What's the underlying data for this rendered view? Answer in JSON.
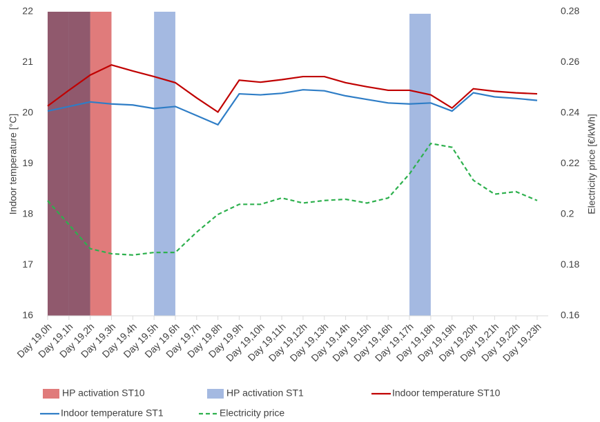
{
  "chart_data": {
    "type": "line",
    "ylabel": "Indoor temperature [°C]",
    "y2label": "Electricity price [€/kWh]",
    "categories": [
      "Day 19,0h",
      "Day 19,1h",
      "Day 19,2h",
      "Day 19,3h",
      "Day 19,4h",
      "Day 19,5h",
      "Day 19,6h",
      "Day 19,7h",
      "Day 19,8h",
      "Day 19,9h",
      "Day 19,10h",
      "Day 19,11h",
      "Day 19,12h",
      "Day 19,13h",
      "Day 19,14h",
      "Day 19,15h",
      "Day 19,16h",
      "Day 19,17h",
      "Day 19,18h",
      "Day 19,19h",
      "Day 19,20h",
      "Day 19,21h",
      "Day 19,22h",
      "Day 19,23h"
    ],
    "ylim": [
      16,
      22
    ],
    "yticks": [
      16,
      17,
      18,
      19,
      20,
      21,
      22
    ],
    "y2lim": [
      0.16,
      0.28
    ],
    "y2ticks": [
      0.16,
      0.18,
      0.2,
      0.22,
      0.24,
      0.26,
      0.28
    ],
    "series": [
      {
        "name": "HP activation ST10",
        "type": "bar",
        "color": "#e07b7b",
        "values": [
          22,
          22,
          22,
          null,
          null,
          null,
          null,
          null,
          null,
          null,
          null,
          null,
          null,
          null,
          null,
          null,
          null,
          null,
          null,
          null,
          null,
          null,
          null,
          null
        ]
      },
      {
        "name": "HP activation ST1",
        "type": "bar",
        "color": "#a4b9e1",
        "values": [
          22,
          22,
          null,
          null,
          null,
          22,
          null,
          null,
          null,
          null,
          null,
          null,
          null,
          null,
          null,
          null,
          null,
          21.96,
          null,
          null,
          null,
          null,
          null,
          null
        ]
      },
      {
        "name": "Indoor temperature ST10",
        "type": "line",
        "color": "#c00000",
        "values": [
          20.14,
          20.45,
          20.75,
          20.95,
          20.83,
          20.72,
          20.6,
          20.3,
          20.02,
          20.65,
          20.61,
          20.66,
          20.72,
          20.72,
          20.6,
          20.52,
          20.45,
          20.45,
          20.36,
          20.1,
          20.48,
          20.43,
          20.4,
          20.38
        ]
      },
      {
        "name": "Indoor temperature ST1",
        "type": "line",
        "color": "#2e7dc6",
        "values": [
          20.04,
          20.13,
          20.22,
          20.18,
          20.16,
          20.09,
          20.13,
          19.95,
          19.77,
          20.38,
          20.36,
          20.39,
          20.46,
          20.44,
          20.34,
          20.27,
          20.2,
          20.18,
          20.2,
          20.04,
          20.4,
          20.32,
          20.29,
          20.25
        ]
      },
      {
        "name": "Electricity price",
        "type": "line",
        "dashed": true,
        "axis": "y2",
        "color": "#2db04d",
        "values": [
          0.2054,
          0.196,
          0.1865,
          0.1845,
          0.184,
          0.185,
          0.185,
          0.193,
          0.2,
          0.204,
          0.204,
          0.2065,
          0.2045,
          0.2055,
          0.206,
          0.2045,
          0.2065,
          0.216,
          0.228,
          0.2265,
          0.2135,
          0.208,
          0.209,
          0.2055
        ]
      }
    ]
  }
}
